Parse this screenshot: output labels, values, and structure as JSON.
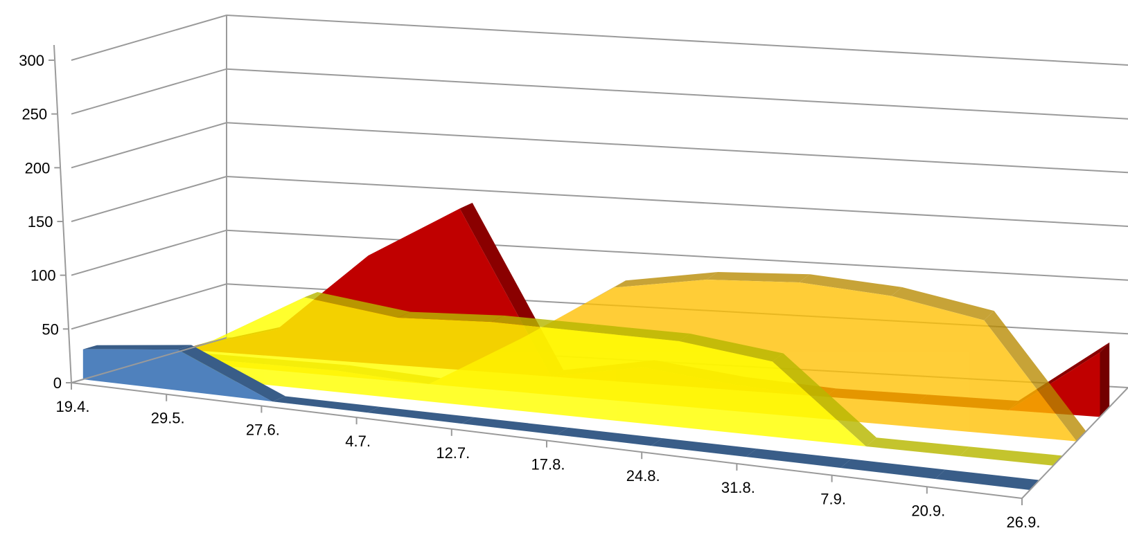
{
  "chart_data": {
    "type": "area",
    "title": "",
    "xlabel": "",
    "ylabel": "",
    "categories": [
      "19.4.",
      "29.5.",
      "27.6.",
      "4.7.",
      "12.7.",
      "17.8.",
      "24.8.",
      "31.8.",
      "7.9.",
      "20.9.",
      "26.9."
    ],
    "y_ticks": [
      "0",
      "50",
      "100",
      "150",
      "200",
      "250",
      "300"
    ],
    "ylim": [
      0,
      300
    ],
    "grid": true,
    "legend": "none",
    "projection": "3d-depth",
    "series": [
      {
        "color": "#c00000",
        "values": [
          1,
          25,
          100,
          150,
          0,
          15,
          5,
          0,
          0,
          0,
          60
        ]
      },
      {
        "color": "#ffc000",
        "values": [
          5,
          5,
          5,
          0,
          50,
          105,
          120,
          125,
          120,
          105,
          0
        ]
      },
      {
        "color": "#ffff00",
        "values": [
          0,
          35,
          85,
          75,
          80,
          80,
          80,
          70,
          0,
          0,
          0
        ]
      },
      {
        "color": "#4f81bd",
        "values": [
          28,
          38,
          0,
          0,
          0,
          0,
          0,
          0,
          0,
          0,
          0
        ]
      }
    ]
  }
}
